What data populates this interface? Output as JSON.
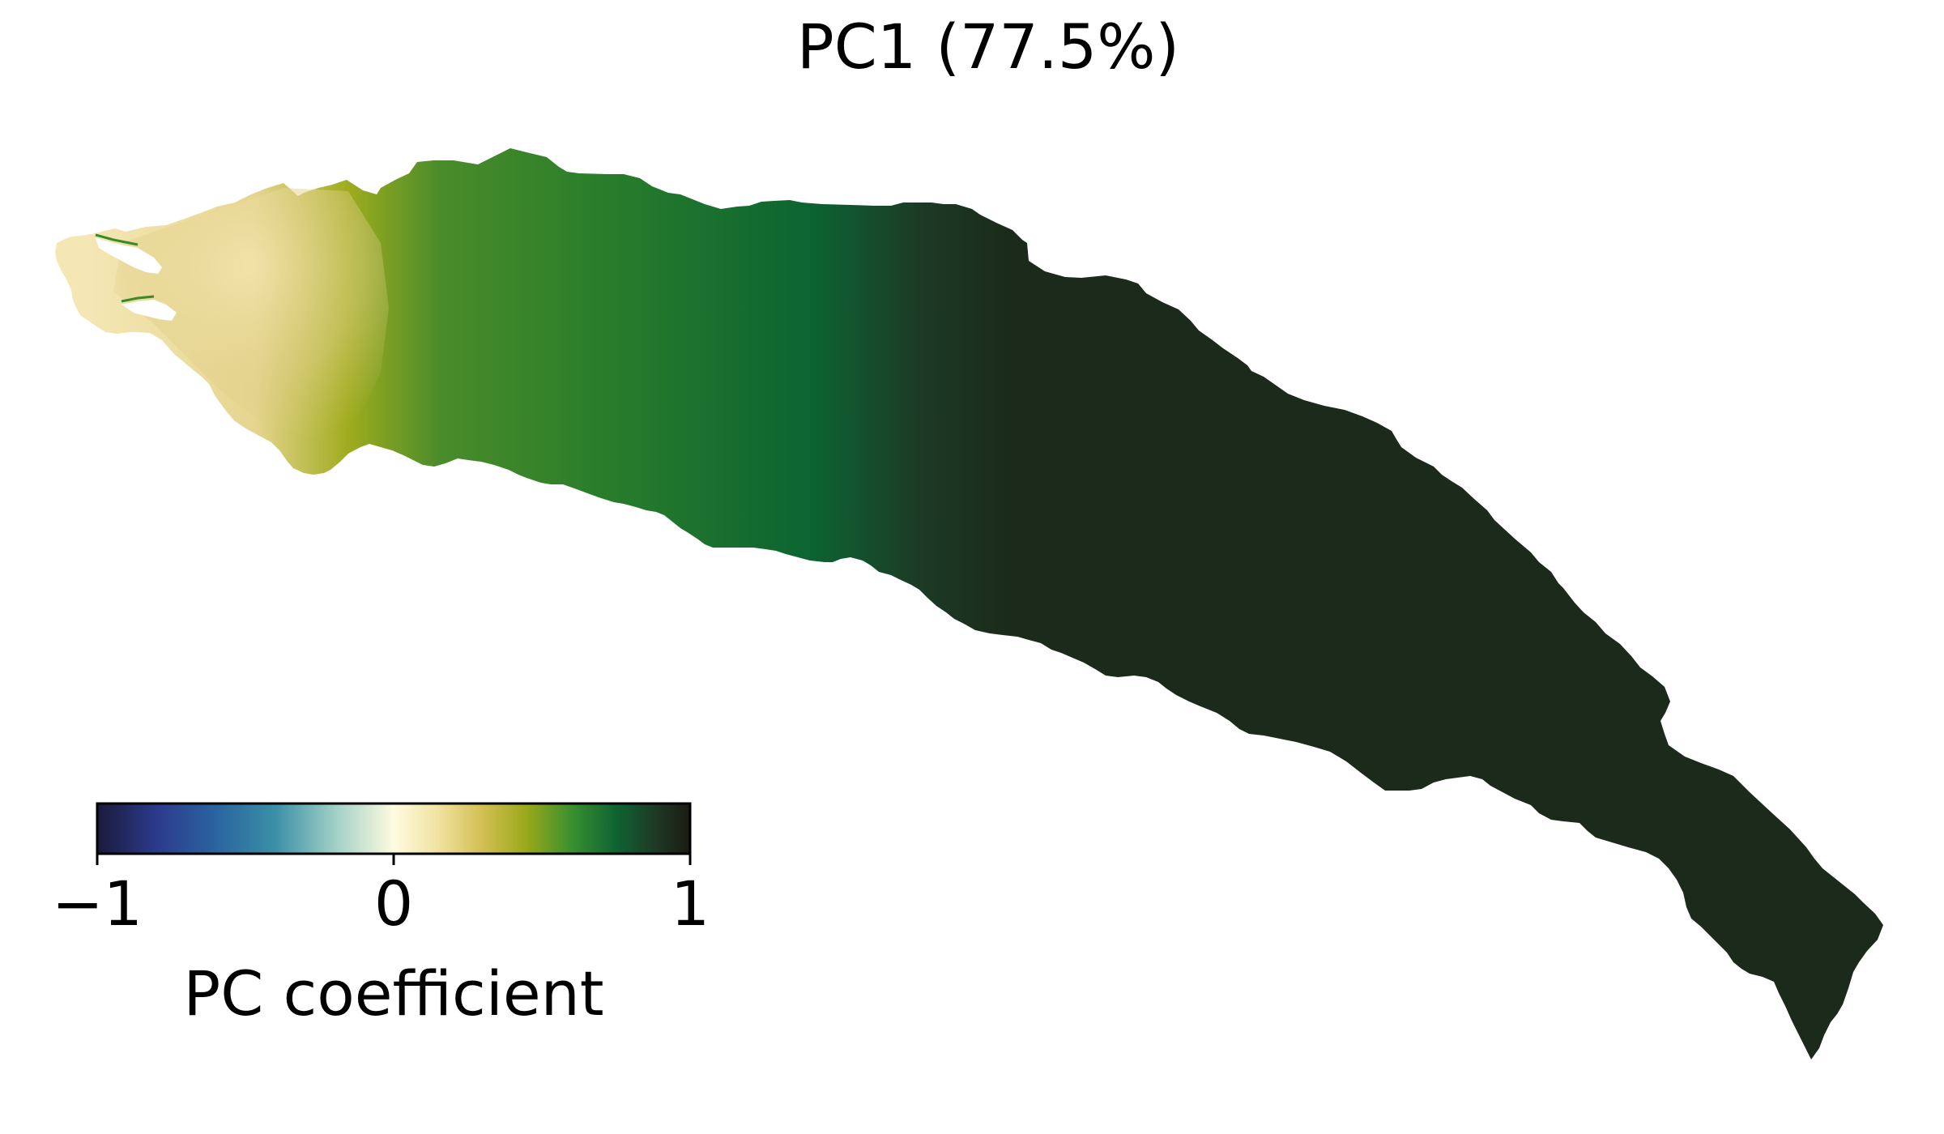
{
  "figure": {
    "title": "PC1 (77.5%)"
  },
  "colorbar": {
    "label": "PC coefficient",
    "min": -1,
    "max": 1,
    "ticks": [
      {
        "value": -1,
        "label": "−1"
      },
      {
        "value": 0,
        "label": "0"
      },
      {
        "value": 1,
        "label": "1"
      }
    ],
    "stops": [
      {
        "value": -1.0,
        "color": "#1a1a3a"
      },
      {
        "value": -0.8,
        "color": "#2c3a8c"
      },
      {
        "value": -0.6,
        "color": "#2a64a0"
      },
      {
        "value": -0.4,
        "color": "#3a8fa6"
      },
      {
        "value": -0.2,
        "color": "#9fcfc6"
      },
      {
        "value": 0.0,
        "color": "#fffbe0"
      },
      {
        "value": 0.15,
        "color": "#f0e2a0"
      },
      {
        "value": 0.3,
        "color": "#d2bf52"
      },
      {
        "value": 0.45,
        "color": "#99a81a"
      },
      {
        "value": 0.6,
        "color": "#3a9030"
      },
      {
        "value": 0.75,
        "color": "#0e6432"
      },
      {
        "value": 0.88,
        "color": "#1f3a26"
      },
      {
        "value": 1.0,
        "color": "#1b1b12"
      }
    ]
  },
  "map": {
    "field_direction": "PC coefficient increases from west (≈0.2) to east (≈1)",
    "colors": {
      "west_tip": "#ead79c",
      "west": "#c9c35a",
      "mid_west": "#3a8a2a",
      "mid": "#0b6636",
      "east": "#1b2a1a"
    }
  }
}
